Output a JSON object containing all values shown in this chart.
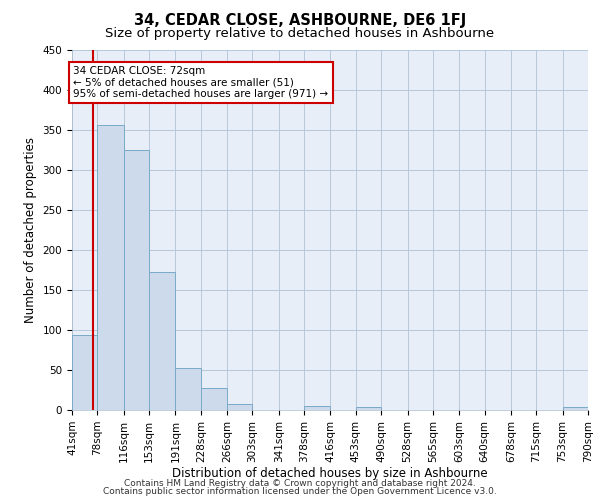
{
  "title": "34, CEDAR CLOSE, ASHBOURNE, DE6 1FJ",
  "subtitle": "Size of property relative to detached houses in Ashbourne",
  "xlabel": "Distribution of detached houses by size in Ashbourne",
  "ylabel": "Number of detached properties",
  "footnote1": "Contains HM Land Registry data © Crown copyright and database right 2024.",
  "footnote2": "Contains public sector information licensed under the Open Government Licence v3.0.",
  "bin_edges": [
    41,
    78,
    116,
    153,
    191,
    228,
    266,
    303,
    341,
    378,
    416,
    453,
    490,
    528,
    565,
    603,
    640,
    678,
    715,
    753,
    790
  ],
  "bar_heights": [
    94,
    356,
    325,
    172,
    52,
    27,
    8,
    0,
    0,
    5,
    0,
    4,
    0,
    0,
    0,
    0,
    0,
    0,
    0,
    4
  ],
  "bar_color": "#ccdaeb",
  "bar_edgecolor": "#7aaac8",
  "grid_color": "#b8c8dc",
  "background_color": "#e8eef8",
  "vline_x": 72,
  "vline_color": "#cc0000",
  "annotation_line1": "34 CEDAR CLOSE: 72sqm",
  "annotation_line2": "← 5% of detached houses are smaller (51)",
  "annotation_line3": "95% of semi-detached houses are larger (971) →",
  "annotation_box_color": "#ffffff",
  "annotation_box_edgecolor": "#cc0000",
  "ylim": [
    0,
    450
  ],
  "yticks": [
    0,
    50,
    100,
    150,
    200,
    250,
    300,
    350,
    400,
    450
  ],
  "title_fontsize": 10.5,
  "subtitle_fontsize": 9.5,
  "label_fontsize": 8.5,
  "tick_fontsize": 7.5,
  "annot_fontsize": 7.5,
  "footnote_fontsize": 6.5
}
